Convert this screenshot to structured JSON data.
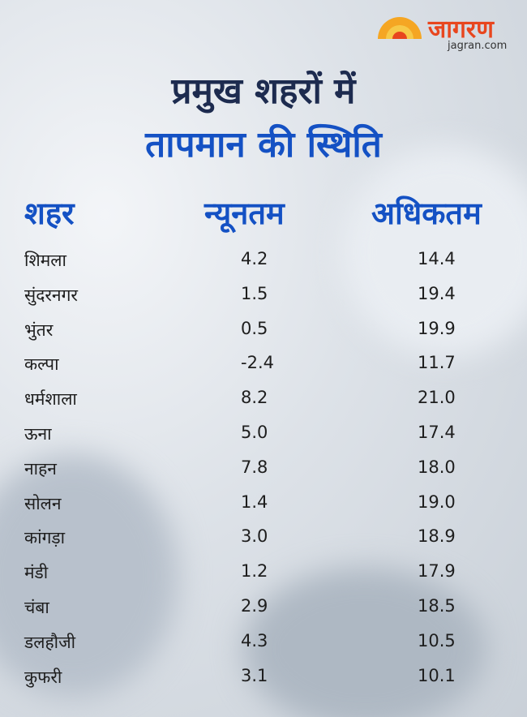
{
  "logo": {
    "name": "जागरण",
    "site": "jagran.com"
  },
  "header": {
    "title_line1": "प्रमुख शहरों में",
    "title_line2": "तापमान की स्थिति"
  },
  "table": {
    "columns": [
      "शहर",
      "न्यूनतम",
      "अधिकतम"
    ],
    "rows": [
      [
        "शिमला",
        "4.2",
        "14.4"
      ],
      [
        "सुंदरनगर",
        "1.5",
        "19.4"
      ],
      [
        "भुंतर",
        "0.5",
        "19.9"
      ],
      [
        "कल्पा",
        "-2.4",
        "11.7"
      ],
      [
        "धर्मशाला",
        "8.2",
        "21.0"
      ],
      [
        "ऊना",
        "5.0",
        "17.4"
      ],
      [
        "नाहन",
        "7.8",
        "18.0"
      ],
      [
        "सोलन",
        "1.4",
        "19.0"
      ],
      [
        "कांगड़ा",
        "3.0",
        "18.9"
      ],
      [
        "मंडी",
        "1.2",
        "17.9"
      ],
      [
        "चंबा",
        "2.9",
        "18.5"
      ],
      [
        "डलहौजी",
        "4.3",
        "10.5"
      ],
      [
        "कुफरी",
        "3.1",
        "10.1"
      ]
    ]
  }
}
